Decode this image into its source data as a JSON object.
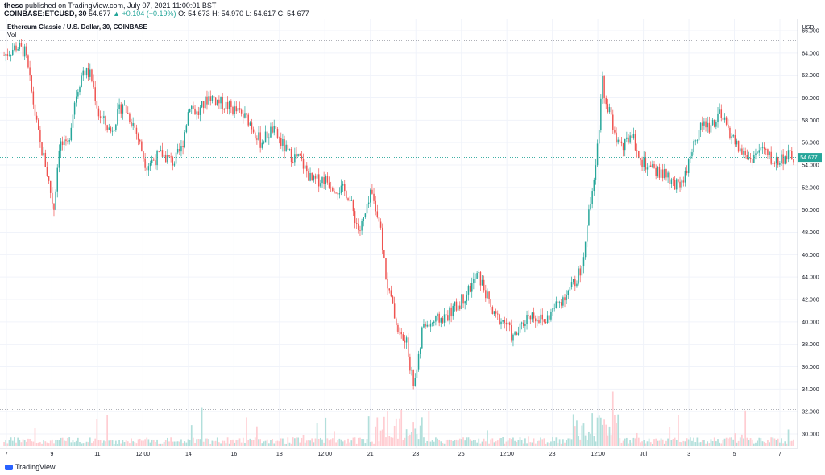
{
  "header": {
    "publisher": "thesc",
    "published_text": "published on TradingView.com, July 07, 2021 11:00:01 BST",
    "symbol": "COINBASE:ETCUSD, 30",
    "price": "54.677",
    "change": "▲ +0.104 (+0.19%)",
    "ohlc": "O: 54.673  H: 54.970  L: 54.617  C: 54.677"
  },
  "chart": {
    "legend_title": "Ethereum Classic / U.S. Dollar, 30, COINBASE",
    "legend_sub": "Vol",
    "currency": "USD",
    "last_price_label": "54.677",
    "last_price": 54.677
  },
  "footer": {
    "brand": "TradingView"
  },
  "colors": {
    "up": "#26a69a",
    "down": "#ef5350",
    "vol_up": "#b2dfdb",
    "vol_down": "#ffcdd2",
    "grid": "#f0f3fa",
    "dotted": "#9598a1",
    "axis_text": "#131722"
  },
  "chart_data": {
    "type": "candlestick",
    "title": "Ethereum Classic / U.S. Dollar, 30, COINBASE",
    "ylabel": "USD",
    "ylim": [
      29,
      68
    ],
    "y_ticks": [
      "66.000",
      "64.000",
      "62.000",
      "60.000",
      "58.000",
      "56.000",
      "54.000",
      "52.000",
      "50.000",
      "48.000",
      "46.000",
      "44.000",
      "42.000",
      "40.000",
      "38.000",
      "36.000",
      "34.000",
      "32.000",
      "30.000"
    ],
    "x_ticks": [
      "7",
      "9",
      "11",
      "12:00",
      "14",
      "16",
      "18",
      "12:00",
      "21",
      "23",
      "25",
      "12:00",
      "28",
      "12:00",
      "Jul",
      "3",
      "5",
      "7"
    ],
    "reference_lines": [
      65.1,
      32.2
    ],
    "anchors": [
      [
        0,
        63.8
      ],
      [
        0.016,
        64.6
      ],
      [
        0.027,
        64.0
      ],
      [
        0.045,
        56.0
      ],
      [
        0.052,
        54.2
      ],
      [
        0.063,
        50.0
      ],
      [
        0.07,
        56.0
      ],
      [
        0.08,
        55.5
      ],
      [
        0.09,
        60.0
      ],
      [
        0.1,
        62.5
      ],
      [
        0.11,
        62.0
      ],
      [
        0.12,
        58.5
      ],
      [
        0.135,
        57.0
      ],
      [
        0.15,
        59.5
      ],
      [
        0.165,
        57.5
      ],
      [
        0.18,
        54.0
      ],
      [
        0.19,
        54.5
      ],
      [
        0.2,
        55.0
      ],
      [
        0.215,
        54.2
      ],
      [
        0.225,
        55.5
      ],
      [
        0.235,
        59.5
      ],
      [
        0.245,
        58.5
      ],
      [
        0.26,
        60.2
      ],
      [
        0.275,
        59.5
      ],
      [
        0.29,
        59.0
      ],
      [
        0.31,
        58.0
      ],
      [
        0.325,
        56.0
      ],
      [
        0.34,
        57.2
      ],
      [
        0.36,
        55.0
      ],
      [
        0.375,
        54.5
      ],
      [
        0.39,
        52.5
      ],
      [
        0.405,
        52.8
      ],
      [
        0.42,
        52.0
      ],
      [
        0.435,
        51.5
      ],
      [
        0.45,
        48.0
      ],
      [
        0.46,
        50.0
      ],
      [
        0.465,
        51.5
      ],
      [
        0.475,
        49.0
      ],
      [
        0.485,
        43.5
      ],
      [
        0.5,
        39.0
      ],
      [
        0.51,
        38.0
      ],
      [
        0.518,
        34.5
      ],
      [
        0.525,
        36.5
      ],
      [
        0.53,
        39.5
      ],
      [
        0.545,
        40.0
      ],
      [
        0.56,
        40.5
      ],
      [
        0.575,
        41.5
      ],
      [
        0.59,
        43.0
      ],
      [
        0.6,
        44.2
      ],
      [
        0.608,
        43.0
      ],
      [
        0.62,
        40.5
      ],
      [
        0.635,
        40.0
      ],
      [
        0.645,
        38.5
      ],
      [
        0.655,
        39.5
      ],
      [
        0.665,
        40.8
      ],
      [
        0.685,
        40.0
      ],
      [
        0.7,
        41.5
      ],
      [
        0.715,
        42.8
      ],
      [
        0.73,
        44.5
      ],
      [
        0.738,
        48.0
      ],
      [
        0.745,
        52.0
      ],
      [
        0.752,
        56.0
      ],
      [
        0.758,
        61.5
      ],
      [
        0.763,
        59.5
      ],
      [
        0.768,
        58.5
      ],
      [
        0.775,
        56.0
      ],
      [
        0.785,
        55.5
      ],
      [
        0.795,
        57.0
      ],
      [
        0.805,
        54.5
      ],
      [
        0.82,
        53.5
      ],
      [
        0.835,
        53.2
      ],
      [
        0.85,
        52.0
      ],
      [
        0.862,
        53.0
      ],
      [
        0.872,
        55.5
      ],
      [
        0.882,
        57.5
      ],
      [
        0.895,
        57.5
      ],
      [
        0.905,
        58.5
      ],
      [
        0.915,
        57.5
      ],
      [
        0.93,
        55.5
      ],
      [
        0.945,
        54.5
      ],
      [
        0.96,
        55.5
      ],
      [
        0.975,
        54.2
      ],
      [
        0.99,
        54.8
      ],
      [
        1.0,
        54.677
      ]
    ]
  }
}
